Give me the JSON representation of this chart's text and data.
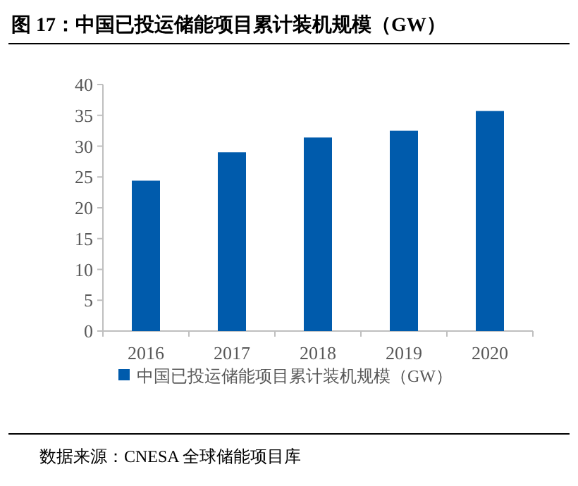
{
  "chart_data": {
    "type": "bar",
    "title": "图 17：中国已投运储能项目累计装机规模（GW）",
    "categories": [
      "2016",
      "2017",
      "2018",
      "2019",
      "2020"
    ],
    "series": [
      {
        "name": "中国已投运储能项目累计装机规模（GW）",
        "color": "#005bac",
        "values": [
          24.4,
          29.0,
          31.4,
          32.5,
          35.7
        ]
      }
    ],
    "ylim": [
      0,
      40
    ],
    "yticks": [
      0,
      5,
      10,
      15,
      20,
      25,
      30,
      35,
      40
    ],
    "grid": false,
    "legend": "bottom",
    "annotations": [
      "数据来源：CNESA 全球储能项目库"
    ]
  }
}
